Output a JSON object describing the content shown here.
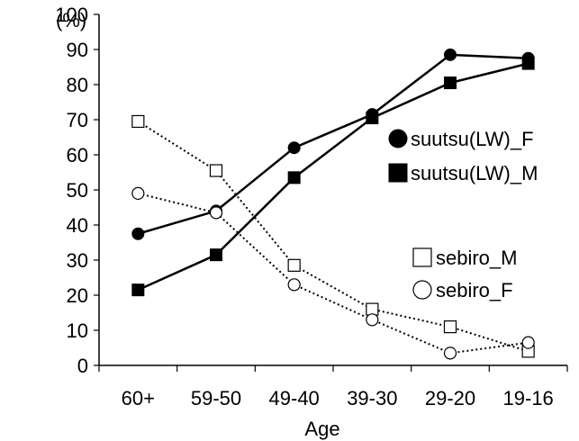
{
  "chart_data": {
    "type": "line",
    "categories": [
      "60+",
      "59-50",
      "49-40",
      "39-30",
      "29-20",
      "19-16"
    ],
    "series": [
      {
        "name": "suutsu(LW)_F",
        "marker": "filled-circle",
        "line": "solid",
        "values": [
          37.5,
          44,
          62,
          71.5,
          88.5,
          87.5
        ]
      },
      {
        "name": "suutsu(LW)_M",
        "marker": "filled-square",
        "line": "solid",
        "values": [
          21.5,
          31.5,
          53.5,
          70.5,
          80.5,
          86
        ]
      },
      {
        "name": "sebiro_M",
        "marker": "open-square",
        "line": "dotted",
        "values": [
          69.5,
          55.5,
          28.5,
          16,
          11,
          4
        ]
      },
      {
        "name": "sebiro_F",
        "marker": "open-circle",
        "line": "dotted",
        "values": [
          49,
          43.5,
          23,
          13,
          3.5,
          6.5
        ]
      }
    ],
    "ylim": [
      0,
      100
    ],
    "yticks": [
      0,
      10,
      20,
      30,
      40,
      50,
      60,
      70,
      80,
      90,
      100
    ],
    "ylabel": "(%)",
    "xlabel": "Age",
    "grid": false,
    "legend": [
      {
        "label": "suutsu(LW)_F",
        "placement": "right, middle"
      },
      {
        "label": "suutsu(LW)_M",
        "placement": "right, middle"
      },
      {
        "label": "sebiro_M",
        "placement": "right, lower"
      },
      {
        "label": "sebiro_F",
        "placement": "right, lower"
      }
    ],
    "colors": {
      "line": "#000000",
      "background": "#ffffff"
    }
  }
}
